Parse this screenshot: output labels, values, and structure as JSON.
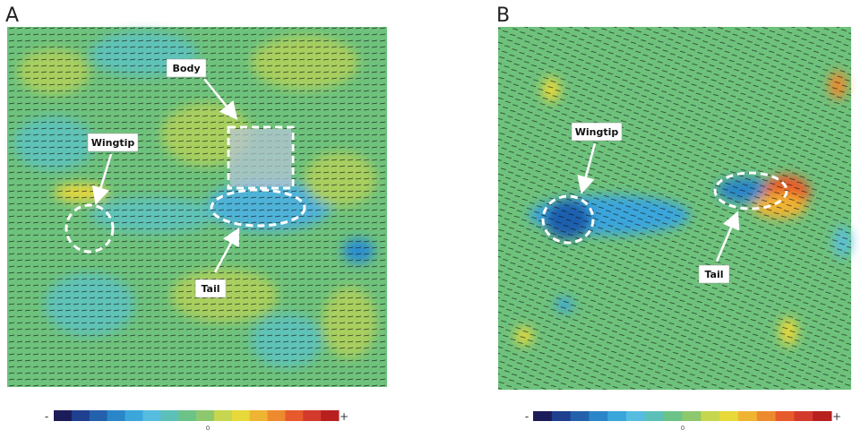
{
  "panels": [
    {
      "label": "A",
      "annotations": [
        "Body",
        "Wingtip",
        "Tail"
      ],
      "colorbar": {
        "min_label": "-",
        "mid_label": "0",
        "max_label": "+"
      }
    },
    {
      "label": "B",
      "annotations": [
        "Wingtip",
        "Tail"
      ],
      "colorbar": {
        "min_label": "-",
        "mid_label": "0",
        "max_label": "+"
      }
    }
  ]
}
